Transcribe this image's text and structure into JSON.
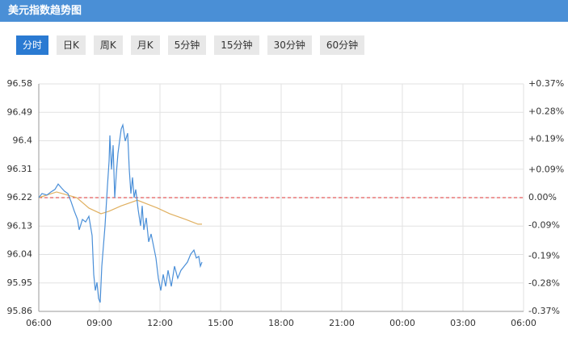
{
  "header": {
    "title": "美元指数趋势图"
  },
  "tabs": {
    "labels": [
      "分时",
      "日K",
      "周K",
      "月K",
      "5分钟",
      "15分钟",
      "30分钟",
      "60分钟"
    ],
    "active": 0
  },
  "chart_data": {
    "type": "line",
    "xlim": [
      0,
      24
    ],
    "xticks": [
      {
        "value": 0,
        "label": "06:00"
      },
      {
        "value": 3,
        "label": "09:00"
      },
      {
        "value": 6,
        "label": "12:00"
      },
      {
        "value": 9,
        "label": "15:00"
      },
      {
        "value": 12,
        "label": "18:00"
      },
      {
        "value": 15,
        "label": "21:00"
      },
      {
        "value": 18,
        "label": "00:00"
      },
      {
        "value": 21,
        "label": "03:00"
      },
      {
        "value": 24,
        "label": "06:00"
      }
    ],
    "ylim": [
      95.86,
      96.58
    ],
    "yticks": [
      96.58,
      96.49,
      96.4,
      96.31,
      96.22,
      96.13,
      96.04,
      95.95,
      95.86
    ],
    "y2lim": [
      -0.37,
      0.37
    ],
    "y2ticks": [
      {
        "value": 0.37,
        "label": "+0.37%"
      },
      {
        "value": 0.28,
        "label": "+0.28%"
      },
      {
        "value": 0.19,
        "label": "+0.19%"
      },
      {
        "value": 0.09,
        "label": "+0.09%"
      },
      {
        "value": 0,
        "label": "0.00%"
      },
      {
        "value": -0.09,
        "label": "-0.09%"
      },
      {
        "value": -0.19,
        "label": "-0.19%"
      },
      {
        "value": -0.28,
        "label": "-0.28%"
      },
      {
        "value": -0.37,
        "label": "-0.37%"
      }
    ],
    "baseline": 96.22,
    "grid": true,
    "series": [
      {
        "color": "#4a8fd8",
        "x": [
          0,
          0.16,
          0.4,
          0.6,
          0.8,
          0.96,
          1.12,
          1.28,
          1.44,
          1.6,
          1.76,
          1.92,
          2,
          2.16,
          2.32,
          2.48,
          2.64,
          2.72,
          2.8,
          2.88,
          2.96,
          3.04,
          3.12,
          3.28,
          3.4,
          3.48,
          3.52,
          3.6,
          3.68,
          3.76,
          3.84,
          3.92,
          4,
          4.08,
          4.16,
          4.28,
          4.4,
          4.48,
          4.56,
          4.64,
          4.72,
          4.8,
          4.92,
          5.04,
          5.12,
          5.2,
          5.32,
          5.44,
          5.56,
          5.68,
          5.8,
          5.92,
          6.04,
          6.16,
          6.28,
          6.4,
          6.56,
          6.72,
          6.88,
          7.04,
          7.2,
          7.36,
          7.52,
          7.68,
          7.8,
          7.92,
          8,
          8.08
        ],
        "values": [
          96.22,
          96.233,
          96.228,
          96.238,
          96.246,
          96.263,
          96.251,
          96.24,
          96.233,
          96.207,
          96.177,
          96.151,
          96.118,
          96.151,
          96.143,
          96.161,
          96.1,
          95.977,
          95.926,
          95.952,
          95.901,
          95.888,
          96.003,
          96.131,
          96.258,
          96.335,
          96.417,
          96.309,
          96.386,
          96.22,
          96.297,
          96.36,
          96.399,
          96.437,
          96.45,
          96.399,
          96.424,
          96.309,
          96.233,
          96.284,
          96.22,
          96.246,
          96.182,
          96.131,
          96.194,
          96.118,
          96.156,
          96.08,
          96.105,
          96.067,
          96.029,
          95.965,
          95.926,
          95.977,
          95.939,
          95.99,
          95.939,
          96.003,
          95.965,
          95.99,
          96.003,
          96.016,
          96.041,
          96.054,
          96.029,
          96.034,
          96.003,
          96.016
        ]
      },
      {
        "color": "#e0b060",
        "x": [
          0,
          0.88,
          1.88,
          2.48,
          3.08,
          3.48,
          4.08,
          4.88,
          5.28,
          5.88,
          6.48,
          7.28,
          7.88,
          8.08
        ],
        "values": [
          96.22,
          96.238,
          96.22,
          96.187,
          96.169,
          96.177,
          96.194,
          96.212,
          96.202,
          96.187,
          96.169,
          96.151,
          96.136,
          96.136
        ]
      }
    ]
  }
}
